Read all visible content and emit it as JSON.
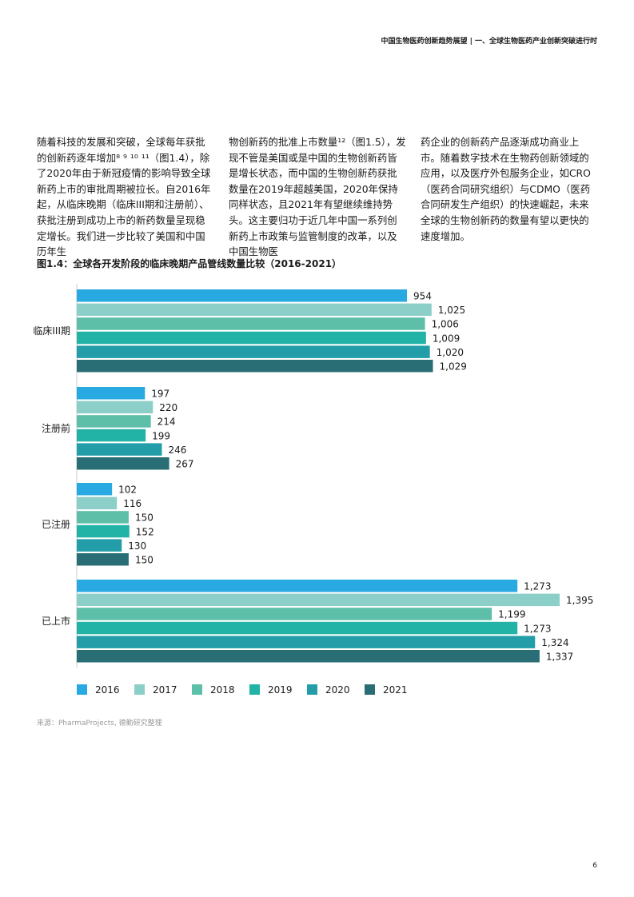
{
  "header": {
    "title": "中国生物医药创新趋势展望 | 一、全球生物医药产业创新突破进行时"
  },
  "body": {
    "col1": "随着科技的发展和突破，全球每年获批的创新药逐年增加⁸ ⁹ ¹⁰ ¹¹（图1.4），除了2020年由于新冠疫情的影响导致全球新药上市的审批周期被拉长。自2016年起，从临床晚期（临床III期和注册前）、获批注册到成功上市的新药数量呈现稳定增长。我们进一步比较了美国和中国历年生",
    "col2": "物创新药的批准上市数量¹²（图1.5），发现不管是美国或是中国的生物创新药皆是增长状态，而中国的生物创新药获批数量在2019年超越美国，2020年保持同样状态，且2021年有望继续维持势头。这主要归功于近几年中国一系列创新药上市政策与监管制度的改革，以及中国生物医",
    "col3": "药企业的创新药产品逐渐成功商业上市。随着数字技术在生物药创新领域的应用，以及医疗外包服务企业，如CRO（医药合同研究组织）与CDMO（医药合同研发生产组织）的快速崛起，未来全球的生物创新药的数量有望以更快的速度增加。"
  },
  "figure": {
    "title": "图1.4：全球各开发阶段的临床晚期产品管线数量比较（2016-2021）"
  },
  "chart_data": {
    "type": "bar",
    "orientation": "horizontal",
    "title": "图1.4：全球各开发阶段的临床晚期产品管线数量比较（2016-2021）",
    "categories": [
      "临床III期",
      "注册前",
      "已注册",
      "已上市"
    ],
    "series": [
      {
        "name": "2016",
        "color": "#29a9e1",
        "values": [
          954,
          197,
          102,
          1273
        ],
        "labels": [
          "954",
          "197",
          "102",
          "1,273"
        ]
      },
      {
        "name": "2017",
        "color": "#8ccfc8",
        "values": [
          1025,
          220,
          116,
          1395
        ],
        "labels": [
          "1,025",
          "220",
          "116",
          "1,395"
        ]
      },
      {
        "name": "2018",
        "color": "#5dbfa8",
        "values": [
          1006,
          214,
          150,
          1199
        ],
        "labels": [
          "1,006",
          "214",
          "150",
          "1,199"
        ]
      },
      {
        "name": "2019",
        "color": "#22b3a6",
        "values": [
          1009,
          199,
          152,
          1273
        ],
        "labels": [
          "1,009",
          "199",
          "152",
          "1,273"
        ]
      },
      {
        "name": "2020",
        "color": "#239ea8",
        "values": [
          1020,
          246,
          130,
          1324
        ],
        "labels": [
          "1,020",
          "246",
          "130",
          "1,324"
        ]
      },
      {
        "name": "2021",
        "color": "#2a6e75",
        "values": [
          1029,
          267,
          150,
          1337
        ],
        "labels": [
          "1,029",
          "267",
          "150",
          "1,337"
        ]
      }
    ],
    "xlim": [
      0,
      1395
    ],
    "axis_color": "#cccccc",
    "legend_position": "bottom",
    "grid": false
  },
  "source": {
    "text": "来源：PharmaProjects, 德勤研究整理"
  },
  "page": {
    "number": "6"
  }
}
